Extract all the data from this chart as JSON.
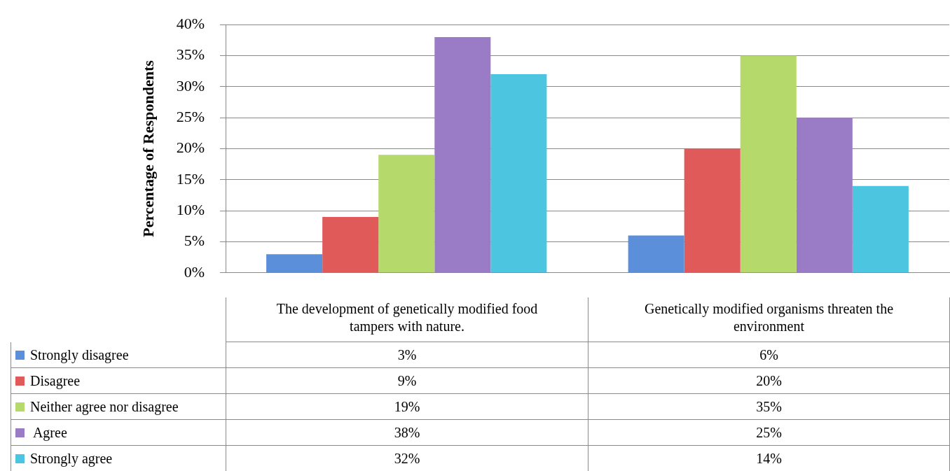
{
  "chart_data": {
    "type": "bar",
    "ylabel": "Percentage of Respondents",
    "categories": [
      "The development of genetically modified food tampers with nature.",
      "Genetically modified organisms threaten the environment"
    ],
    "series": [
      {
        "name": "Strongly disagree",
        "color": "#5b8fd9",
        "values": [
          3,
          6
        ],
        "value_labels": [
          "3%",
          "6%"
        ]
      },
      {
        "name": "Disagree",
        "color": "#e05a5a",
        "values": [
          9,
          20
        ],
        "value_labels": [
          "9%",
          "20%"
        ]
      },
      {
        "name": "Neither agree nor disagree",
        "color": "#b5d96a",
        "values": [
          19,
          35
        ],
        "value_labels": [
          "19%",
          "35%"
        ]
      },
      {
        "name": " Agree",
        "color": "#9a7cc6",
        "values": [
          38,
          25
        ],
        "value_labels": [
          "38%",
          "25%"
        ]
      },
      {
        "name": "Strongly agree",
        "color": "#4cc6e0",
        "values": [
          32,
          14
        ],
        "value_labels": [
          "32%",
          "14%"
        ]
      }
    ],
    "ylim": [
      0,
      40
    ],
    "yticks": [
      {
        "value": 0,
        "label": "0%"
      },
      {
        "value": 5,
        "label": "5%"
      },
      {
        "value": 10,
        "label": "10%"
      },
      {
        "value": 15,
        "label": "15%"
      },
      {
        "value": 20,
        "label": "20%"
      },
      {
        "value": 25,
        "label": "25%"
      },
      {
        "value": 30,
        "label": "30%"
      },
      {
        "value": 35,
        "label": "35%"
      },
      {
        "value": 40,
        "label": "40%"
      }
    ],
    "grid": "y",
    "legend": "bottom left"
  }
}
